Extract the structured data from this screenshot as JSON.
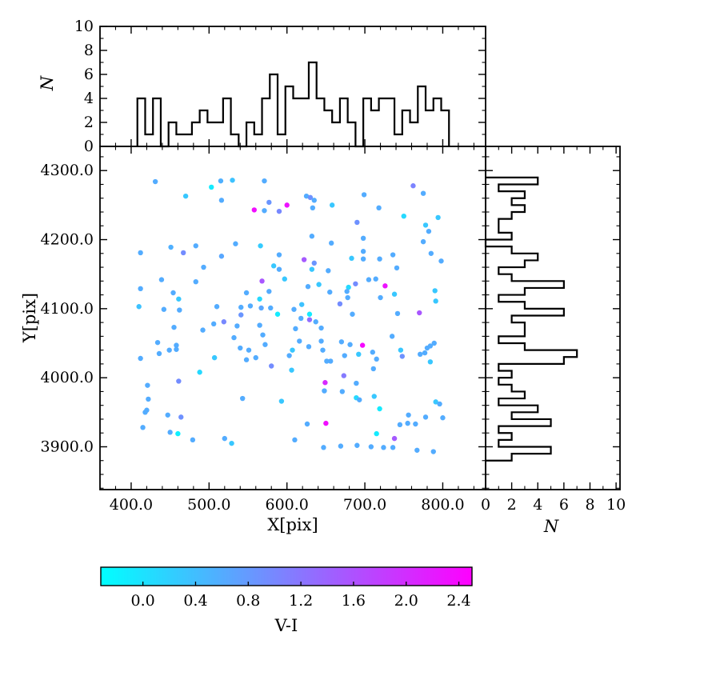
{
  "figure": {
    "background": "#ffffff",
    "axis_color": "#000000",
    "hist_line_color": "#000000"
  },
  "chart_data": {
    "type": "scatter",
    "description": "Scatter of source positions colored by V-I with marginal step histograms",
    "main": {
      "xlabel": "X[pix]",
      "ylabel": "Y[pix]",
      "xlim": [
        360,
        855
      ],
      "ylim": [
        3838,
        4335
      ],
      "xticks": [
        400,
        500,
        600,
        700,
        800
      ],
      "xtick_labels": [
        "400.0",
        "500.0",
        "600.0",
        "700.0",
        "800.0"
      ],
      "yticks": [
        3900,
        4000,
        4100,
        4200,
        4300
      ],
      "ytick_labels": [
        "3900.0",
        "4000.0",
        "4100.0",
        "4200.0",
        "4300.0"
      ],
      "minor_step": 20,
      "marker_radius": 3.2,
      "points": [
        [
          431,
          4284,
          0.6
        ],
        [
          515,
          4285,
          0.55
        ],
        [
          530,
          4286,
          0.35
        ],
        [
          571,
          4285,
          0.6
        ],
        [
          503,
          4276,
          -0.1
        ],
        [
          470,
          4263,
          0.3
        ],
        [
          516,
          4257,
          0.6
        ],
        [
          577,
          4254,
          0.85
        ],
        [
          558,
          4243,
          2.35
        ],
        [
          571,
          4242,
          0.6
        ],
        [
          590,
          4241,
          1.0
        ],
        [
          600,
          4250,
          2.3
        ],
        [
          412,
          4181,
          0.6
        ],
        [
          451,
          4189,
          0.55
        ],
        [
          467,
          4181,
          0.95
        ],
        [
          483,
          4191,
          0.6
        ],
        [
          534,
          4194,
          0.6
        ],
        [
          566,
          4191,
          0.25
        ],
        [
          590,
          4178,
          0.6
        ],
        [
          516,
          4176,
          0.65
        ],
        [
          493,
          4160,
          0.6
        ],
        [
          583,
          4162,
          0.3
        ],
        [
          590,
          4157,
          0.6
        ],
        [
          439,
          4142,
          0.6
        ],
        [
          483,
          4139,
          0.6
        ],
        [
          568,
          4140,
          1.55
        ],
        [
          597,
          4143,
          0.3
        ],
        [
          412,
          4129,
          0.6
        ],
        [
          454,
          4123,
          0.6
        ],
        [
          461,
          4114,
          0.3
        ],
        [
          548,
          4123,
          0.6
        ],
        [
          577,
          4125,
          0.6
        ],
        [
          565,
          4114,
          0.1
        ],
        [
          410,
          4103,
          0.35
        ],
        [
          442,
          4099,
          0.6
        ],
        [
          462,
          4098,
          0.6
        ],
        [
          510,
          4103,
          0.6
        ],
        [
          541,
          4102,
          0.6
        ],
        [
          553,
          4104,
          0.6
        ],
        [
          567,
          4101,
          0.65
        ],
        [
          579,
          4101,
          0.6
        ],
        [
          541,
          4091,
          0.85
        ],
        [
          588,
          4092,
          -0.1
        ],
        [
          625,
          4263,
          0.6
        ],
        [
          630,
          4261,
          0.9
        ],
        [
          635,
          4257,
          0.6
        ],
        [
          633,
          4246,
          0.6
        ],
        [
          658,
          4250,
          0.3
        ],
        [
          699,
          4265,
          0.6
        ],
        [
          718,
          4246,
          0.6
        ],
        [
          762,
          4278,
          1.05
        ],
        [
          775,
          4267,
          0.6
        ],
        [
          750,
          4234,
          0.1
        ],
        [
          794,
          4232,
          0.3
        ],
        [
          690,
          4225,
          0.9
        ],
        [
          778,
          4221,
          0.3
        ],
        [
          782,
          4212,
          0.6
        ],
        [
          632,
          4205,
          0.6
        ],
        [
          698,
          4202,
          0.6
        ],
        [
          657,
          4195,
          0.6
        ],
        [
          775,
          4197,
          0.6
        ],
        [
          698,
          4183,
          0.6
        ],
        [
          698,
          4172,
          0.6
        ],
        [
          683,
          4173,
          0.3
        ],
        [
          719,
          4172,
          0.6
        ],
        [
          736,
          4178,
          0.6
        ],
        [
          622,
          4171,
          1.5
        ],
        [
          635,
          4166,
          0.85
        ],
        [
          632,
          4157,
          0.3
        ],
        [
          653,
          4155,
          0.6
        ],
        [
          741,
          4159,
          0.6
        ],
        [
          785,
          4180,
          0.6
        ],
        [
          798,
          4169,
          0.6
        ],
        [
          641,
          4135,
          0.3
        ],
        [
          627,
          4132,
          0.6
        ],
        [
          688,
          4136,
          0.95
        ],
        [
          679,
          4131,
          0.1
        ],
        [
          705,
          4142,
          0.6
        ],
        [
          714,
          4143,
          0.6
        ],
        [
          726,
          4133,
          2.3
        ],
        [
          655,
          4124,
          0.6
        ],
        [
          677,
          4125,
          0.6
        ],
        [
          678,
          4116,
          0.6
        ],
        [
          668,
          4107,
          0.95
        ],
        [
          720,
          4116,
          0.6
        ],
        [
          738,
          4121,
          0.3
        ],
        [
          790,
          4126,
          0.3
        ],
        [
          791,
          4111,
          0.3
        ],
        [
          609,
          4099,
          0.6
        ],
        [
          619,
          4106,
          0.35
        ],
        [
          629,
          4092,
          -0.1
        ],
        [
          684,
          4092,
          0.6
        ],
        [
          742,
          4093,
          0.6
        ],
        [
          770,
          4094,
          1.55
        ],
        [
          455,
          4073,
          0.6
        ],
        [
          506,
          4078,
          0.6
        ],
        [
          519,
          4081,
          1.0
        ],
        [
          492,
          4069,
          0.6
        ],
        [
          536,
          4075,
          0.6
        ],
        [
          565,
          4076,
          0.6
        ],
        [
          434,
          4051,
          0.6
        ],
        [
          458,
          4047,
          0.6
        ],
        [
          449,
          4040,
          0.6
        ],
        [
          458,
          4041,
          0.6
        ],
        [
          412,
          4028,
          0.6
        ],
        [
          436,
          4035,
          0.6
        ],
        [
          507,
          4029,
          0.3
        ],
        [
          532,
          4058,
          0.6
        ],
        [
          540,
          4043,
          0.6
        ],
        [
          551,
          4040,
          0.6
        ],
        [
          548,
          4026,
          0.6
        ],
        [
          560,
          4029,
          0.6
        ],
        [
          569,
          4062,
          0.6
        ],
        [
          572,
          4048,
          0.6
        ],
        [
          580,
          4017,
          0.95
        ],
        [
          488,
          4008,
          0.1
        ],
        [
          461,
          3995,
          0.95
        ],
        [
          421,
          3989,
          0.6
        ],
        [
          422,
          3969,
          0.6
        ],
        [
          420,
          3953,
          0.6
        ],
        [
          418,
          3950,
          0.6
        ],
        [
          447,
          3946,
          0.6
        ],
        [
          464,
          3943,
          0.9
        ],
        [
          415,
          3928,
          0.6
        ],
        [
          450,
          3921,
          0.6
        ],
        [
          460,
          3919,
          -0.15
        ],
        [
          479,
          3910,
          0.6
        ],
        [
          520,
          3912,
          0.6
        ],
        [
          529,
          3905,
          0.3
        ],
        [
          543,
          3970,
          0.6
        ],
        [
          593,
          3966,
          0.3
        ],
        [
          618,
          4086,
          0.6
        ],
        [
          629,
          4084,
          1.3
        ],
        [
          637,
          4081,
          0.6
        ],
        [
          644,
          4072,
          0.6
        ],
        [
          611,
          4071,
          0.6
        ],
        [
          616,
          4053,
          0.6
        ],
        [
          628,
          4045,
          0.6
        ],
        [
          644,
          4053,
          0.6
        ],
        [
          646,
          4040,
          0.6
        ],
        [
          651,
          4024,
          0.6
        ],
        [
          656,
          4024,
          0.6
        ],
        [
          607,
          4040,
          0.3
        ],
        [
          603,
          4032,
          0.6
        ],
        [
          606,
          4011,
          0.3
        ],
        [
          670,
          4052,
          0.6
        ],
        [
          681,
          4048,
          0.6
        ],
        [
          697,
          4047,
          2.4
        ],
        [
          674,
          4032,
          0.6
        ],
        [
          692,
          4034,
          0.3
        ],
        [
          710,
          4037,
          0.6
        ],
        [
          715,
          4027,
          0.6
        ],
        [
          711,
          4013,
          0.6
        ],
        [
          746,
          4040,
          0.3
        ],
        [
          748,
          4031,
          0.9
        ],
        [
          771,
          4034,
          0.6
        ],
        [
          777,
          4036,
          0.6
        ],
        [
          780,
          4043,
          0.6
        ],
        [
          784,
          4046,
          0.6
        ],
        [
          789,
          4050,
          0.6
        ],
        [
          735,
          4060,
          0.6
        ],
        [
          784,
          4023,
          0.3
        ],
        [
          673,
          4003,
          1.15
        ],
        [
          649,
          3993,
          2.05
        ],
        [
          648,
          3981,
          0.6
        ],
        [
          671,
          3980,
          0.6
        ],
        [
          689,
          3992,
          0.6
        ],
        [
          689,
          3971,
          0.1
        ],
        [
          693,
          3968,
          0.6
        ],
        [
          719,
          3955,
          -0.1
        ],
        [
          712,
          3973,
          0.3
        ],
        [
          756,
          3946,
          0.6
        ],
        [
          745,
          3932,
          0.6
        ],
        [
          755,
          3934,
          0.6
        ],
        [
          765,
          3933,
          0.6
        ],
        [
          778,
          3943,
          0.6
        ],
        [
          800,
          3942,
          0.6
        ],
        [
          791,
          3965,
          0.3
        ],
        [
          796,
          3962,
          0.6
        ],
        [
          650,
          3934,
          2.35
        ],
        [
          626,
          3933,
          0.6
        ],
        [
          610,
          3910,
          0.6
        ],
        [
          647,
          3899,
          0.6
        ],
        [
          669,
          3901,
          0.6
        ],
        [
          690,
          3902,
          0.6
        ],
        [
          708,
          3900,
          0.6
        ],
        [
          724,
          3899,
          0.6
        ],
        [
          736,
          3899,
          0.6
        ],
        [
          738,
          3912,
          1.5
        ],
        [
          715,
          3919,
          -0.1
        ],
        [
          767,
          3895,
          0.6
        ],
        [
          788,
          3893,
          0.6
        ]
      ]
    },
    "top_histogram": {
      "ylabel": "N",
      "ylim": [
        0,
        10
      ],
      "yticks": [
        0,
        2,
        4,
        6,
        8,
        10
      ],
      "ytick_labels": [
        "0",
        "2",
        "4",
        "6",
        "8",
        "10"
      ],
      "bin_start": 408,
      "bin_width": 10,
      "counts": [
        4,
        1,
        4,
        0,
        2,
        1,
        1,
        2,
        3,
        2,
        2,
        4,
        1,
        0,
        2,
        1,
        4,
        6,
        1,
        5,
        4,
        4,
        7,
        4,
        3,
        2,
        4,
        2,
        0,
        4,
        3,
        4,
        4,
        1,
        3,
        2,
        5,
        3,
        4,
        3
      ]
    },
    "right_histogram": {
      "xlabel": "N",
      "xlim": [
        0,
        10.3
      ],
      "xticks": [
        0,
        2,
        4,
        6,
        8,
        10
      ],
      "xtick_labels": [
        "0",
        "2",
        "4",
        "6",
        "8",
        "10"
      ],
      "bin_start_high": 4290,
      "bin_width": 10,
      "counts_top_to_bottom": [
        4,
        1,
        3,
        2,
        3,
        2,
        1,
        1,
        2,
        0,
        2,
        4,
        3,
        1,
        2,
        6,
        3,
        1,
        3,
        6,
        2,
        3,
        3,
        1,
        3,
        7,
        6,
        1,
        2,
        1,
        2,
        3,
        1,
        4,
        2,
        5,
        1,
        2,
        1,
        5,
        2
      ]
    },
    "colorbar": {
      "label": "V-I",
      "vmin": -0.32,
      "vmax": 2.5,
      "ticks": [
        0.0,
        0.4,
        0.8,
        1.2,
        1.6,
        2.0,
        2.4
      ],
      "tick_labels": [
        "0.0",
        "0.4",
        "0.8",
        "1.2",
        "1.6",
        "2.0",
        "2.4"
      ],
      "cmap": "cool",
      "cmap_start": "#00ffff",
      "cmap_end": "#ff00ff"
    }
  }
}
